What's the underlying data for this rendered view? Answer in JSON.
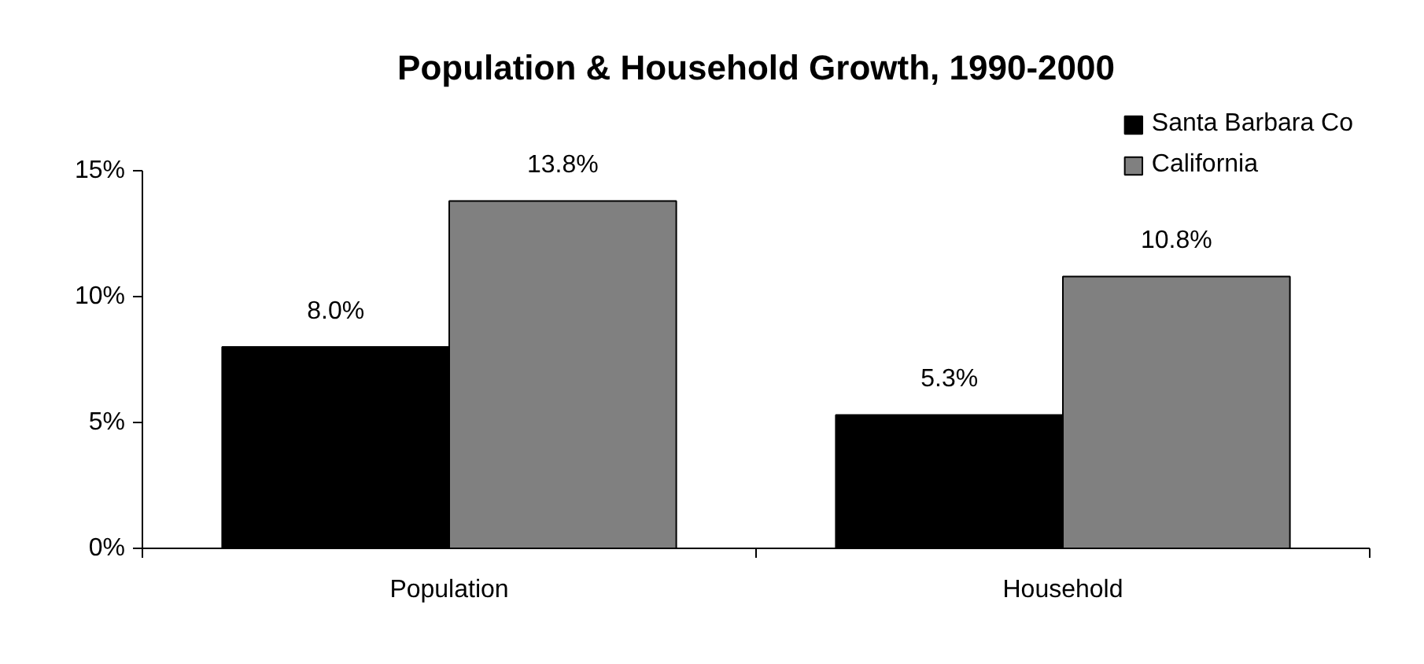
{
  "chart_data": {
    "type": "bar",
    "title": "Population & Household Growth, 1990-2000",
    "categories": [
      "Population",
      "Household"
    ],
    "series": [
      {
        "name": "Santa Barbara Co",
        "color": "#000000",
        "values": [
          8.0,
          5.3
        ]
      },
      {
        "name": "California",
        "color": "#808080",
        "values": [
          13.8,
          10.8
        ]
      }
    ],
    "ylim": [
      0,
      15
    ],
    "yticks": [
      {
        "value": 0,
        "label": "0%"
      },
      {
        "value": 5,
        "label": "5%"
      },
      {
        "value": 10,
        "label": "10%"
      },
      {
        "value": 15,
        "label": "15%"
      }
    ],
    "value_labels": [
      [
        "8.0%",
        "5.3%"
      ],
      [
        "13.8%",
        "10.8%"
      ]
    ],
    "grid": false,
    "legend": "top right"
  }
}
